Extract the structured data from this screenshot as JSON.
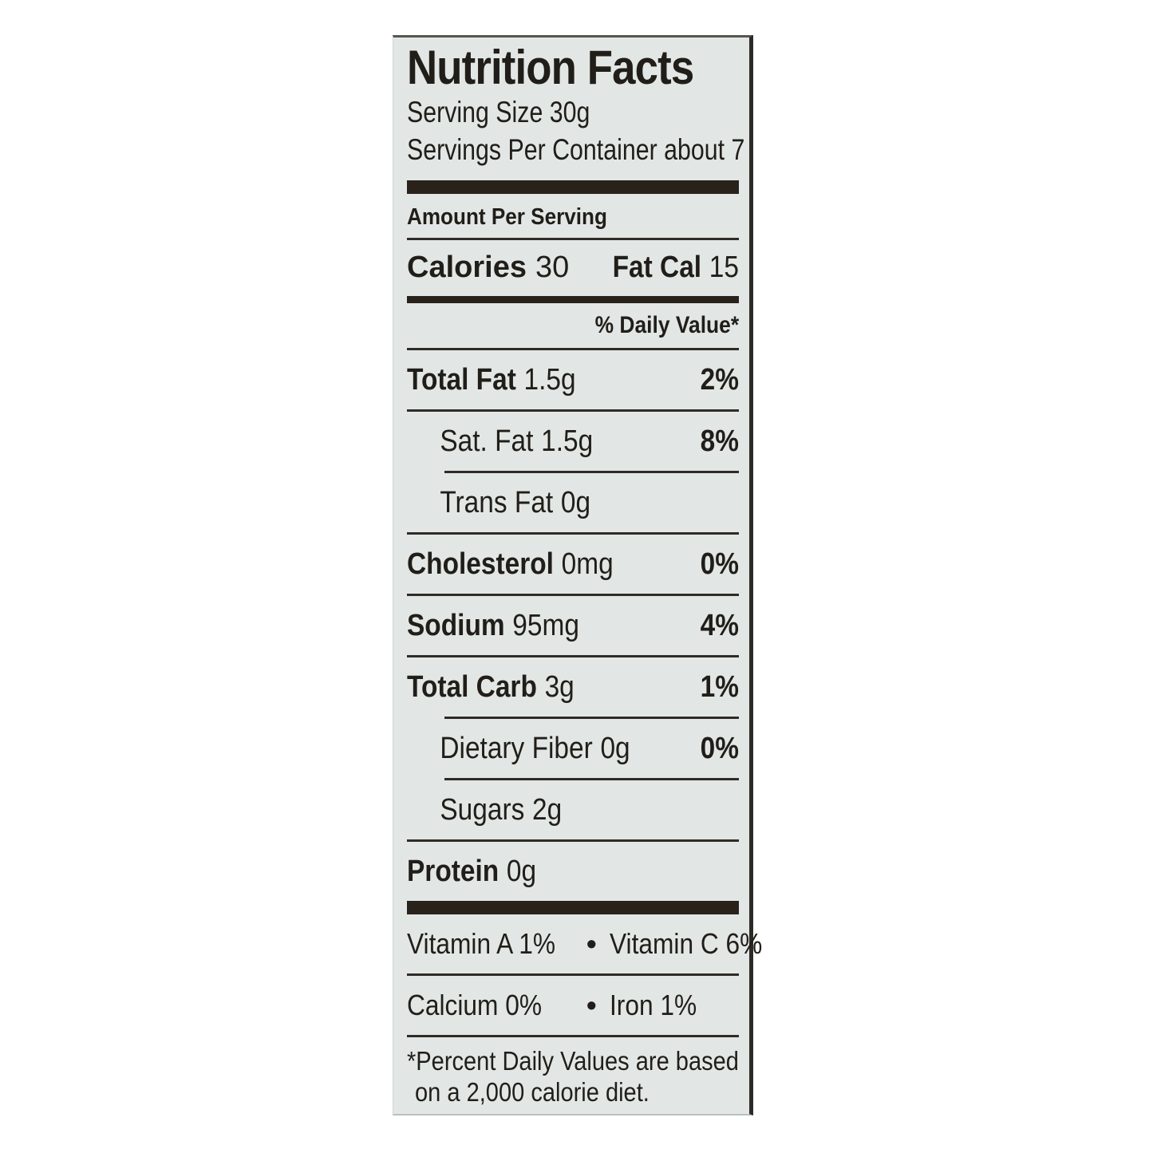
{
  "page": {
    "background": "#ffffff"
  },
  "label": {
    "title": "Nutrition Facts",
    "serving_size": "Serving Size 30g",
    "servings_per_container": "Servings Per Container about 7",
    "amount_per_serving": "Amount Per Serving",
    "calories_label": "Calories",
    "calories_value": "30",
    "fat_calories_label": "Fat Cal",
    "fat_calories_value": "15",
    "daily_value_header": "% Daily Value*",
    "nutrients": [
      {
        "name": "Total Fat",
        "amount": "1.5g",
        "dv": "2%"
      },
      {
        "name": "Sat. Fat",
        "amount": "1.5g",
        "dv": "8%"
      },
      {
        "name": "Trans Fat",
        "amount": "0g",
        "dv": ""
      },
      {
        "name": "Cholesterol",
        "amount": "0mg",
        "dv": "0%"
      },
      {
        "name": "Sodium",
        "amount": "95mg",
        "dv": "4%"
      },
      {
        "name": "Total Carb",
        "amount": "3g",
        "dv": "1%"
      },
      {
        "name": "Dietary Fiber",
        "amount": "0g",
        "dv": "0%"
      },
      {
        "name": "Sugars",
        "amount": "2g",
        "dv": ""
      },
      {
        "name": "Protein",
        "amount": "0g",
        "dv": ""
      }
    ],
    "vitamins": {
      "bullet": "•",
      "row1_left": "Vitamin A 1%",
      "row1_right": "Vitamin C 6%",
      "row2_left": "Calcium 0%",
      "row2_right": "Iron 1%"
    },
    "footnote_line1": "*Percent Daily Values are based",
    "footnote_line2": "on a 2,000 calorie diet.",
    "colors": {
      "label_background": "#e2e7e6",
      "text": "#211e19",
      "bar": "#29221b",
      "edge": "#2b2a26"
    }
  }
}
